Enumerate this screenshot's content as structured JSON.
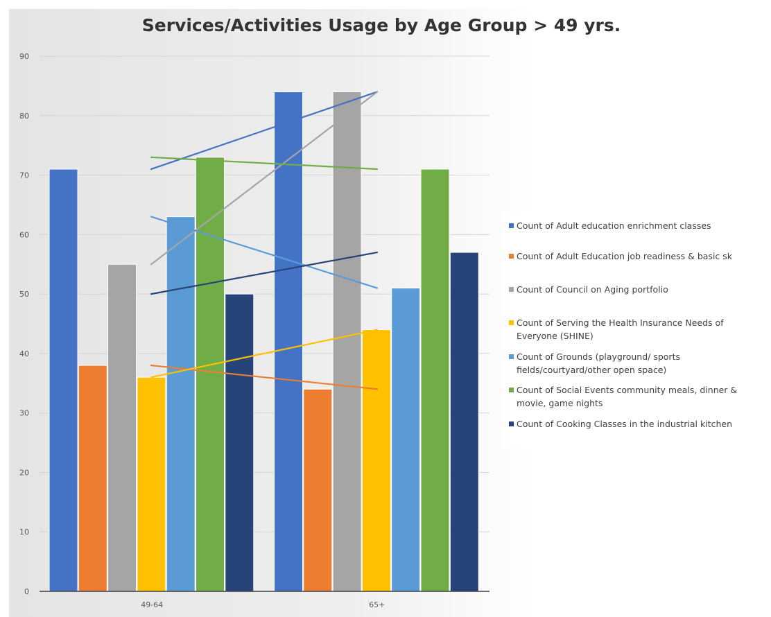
{
  "chart_data": {
    "type": "bar",
    "title": "Services/Activities Usage by Age Group > 49 yrs.",
    "categories": [
      "49-64",
      "65+"
    ],
    "ylim": [
      0,
      90
    ],
    "yticks": [
      0,
      10,
      20,
      30,
      40,
      50,
      60,
      70,
      80,
      90
    ],
    "grid": true,
    "legend_position": "right",
    "trendlines": true,
    "series": [
      {
        "name": "Count of Adult education enrichment classes",
        "color": "#4472c4",
        "values": [
          71,
          84
        ]
      },
      {
        "name": "Count of Adult Education job readiness & basic sk",
        "color": "#ed7d31",
        "values": [
          38,
          34
        ]
      },
      {
        "name": "Count of Council on Aging portfolio",
        "color": "#a5a5a5",
        "values": [
          55,
          84
        ]
      },
      {
        "name": "Count of Serving the Health Insurance Needs of Everyone (SHINE)",
        "color": "#ffc000",
        "values": [
          36,
          44
        ]
      },
      {
        "name": "Count of Grounds (playground/ sports fields/courtyard/other open space)",
        "color": "#5b9bd5",
        "values": [
          63,
          51
        ]
      },
      {
        "name": "Count of Social Events community meals, dinner & movie, game nights",
        "color": "#70ad47",
        "values": [
          73,
          71
        ]
      },
      {
        "name": "Count of Cooking Classes in the industrial kitchen",
        "color": "#264478",
        "values": [
          50,
          57
        ]
      }
    ]
  }
}
